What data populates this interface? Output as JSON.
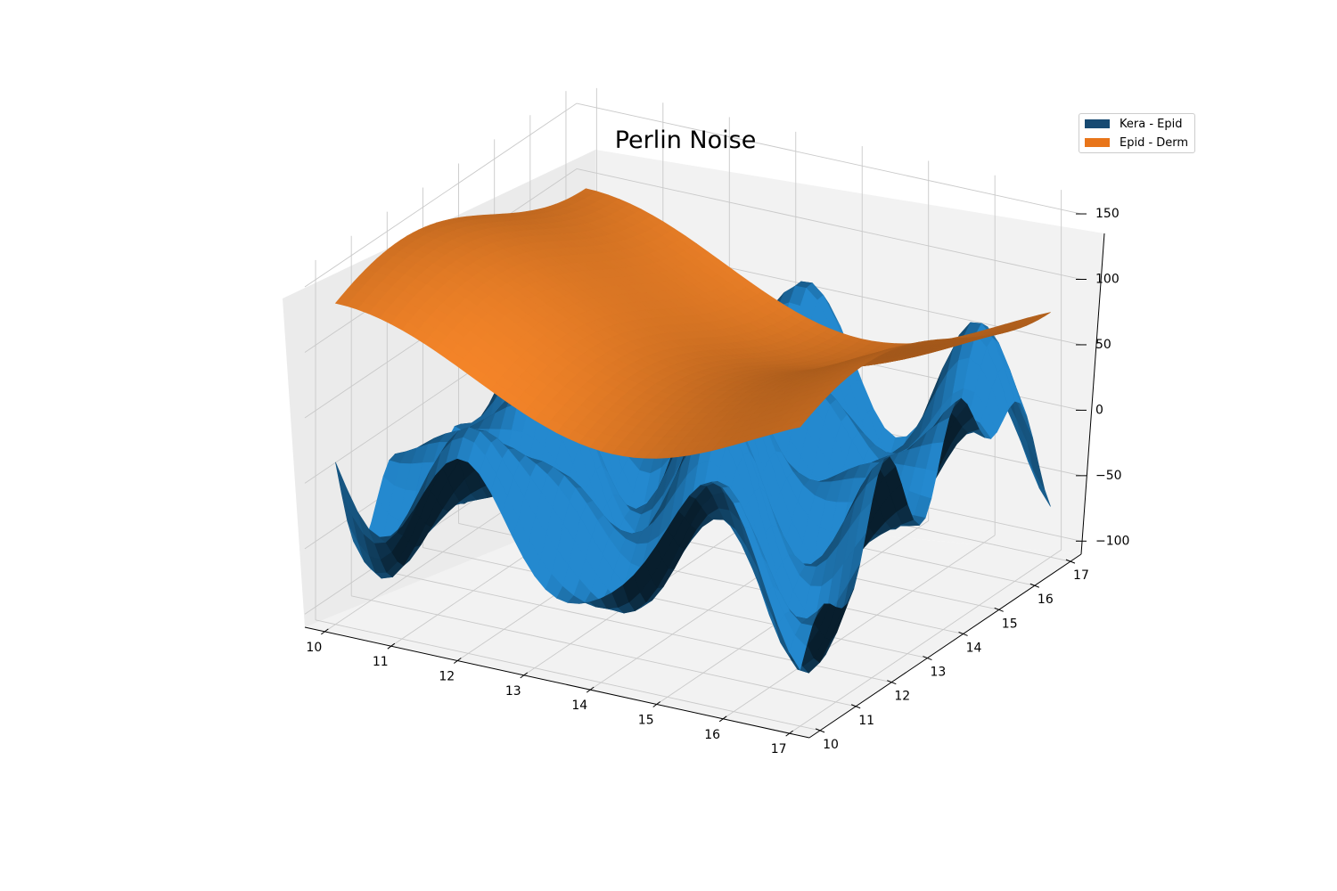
{
  "chart_data": {
    "type": "surface3d",
    "title": "Perlin Noise",
    "xlabel": "",
    "ylabel": "",
    "zlabel": "",
    "x_ticks": [
      "10",
      "11",
      "12",
      "13",
      "14",
      "15",
      "16",
      "17"
    ],
    "y_ticks": [
      "10",
      "11",
      "12",
      "13",
      "14",
      "15",
      "16",
      "17"
    ],
    "z_ticks": [
      "−100",
      "−50",
      "0",
      "50",
      "100",
      "150"
    ],
    "xlim": [
      9.7,
      17.3
    ],
    "ylim": [
      9.7,
      17.3
    ],
    "zlim": [
      -110,
      165
    ],
    "grid": true,
    "legend_position": "top-right",
    "series": [
      {
        "name": "Kera - Epid",
        "color": "#1f77b4",
        "legend_color": "#174a72",
        "description_values": "wavy noise surface oscillating roughly between -90 and 75",
        "z_min": -90,
        "z_max": 75
      },
      {
        "name": "Epid - Derm",
        "color": "#ff8a2a",
        "legend_color": "#e8751a",
        "z_min": 25,
        "z_max": 150
      }
    ]
  },
  "colors": {
    "pane_light": "#f2f2f2",
    "pane_mid": "#ebebeb",
    "grid": "#c9c9c9",
    "axis_line": "#000000"
  }
}
